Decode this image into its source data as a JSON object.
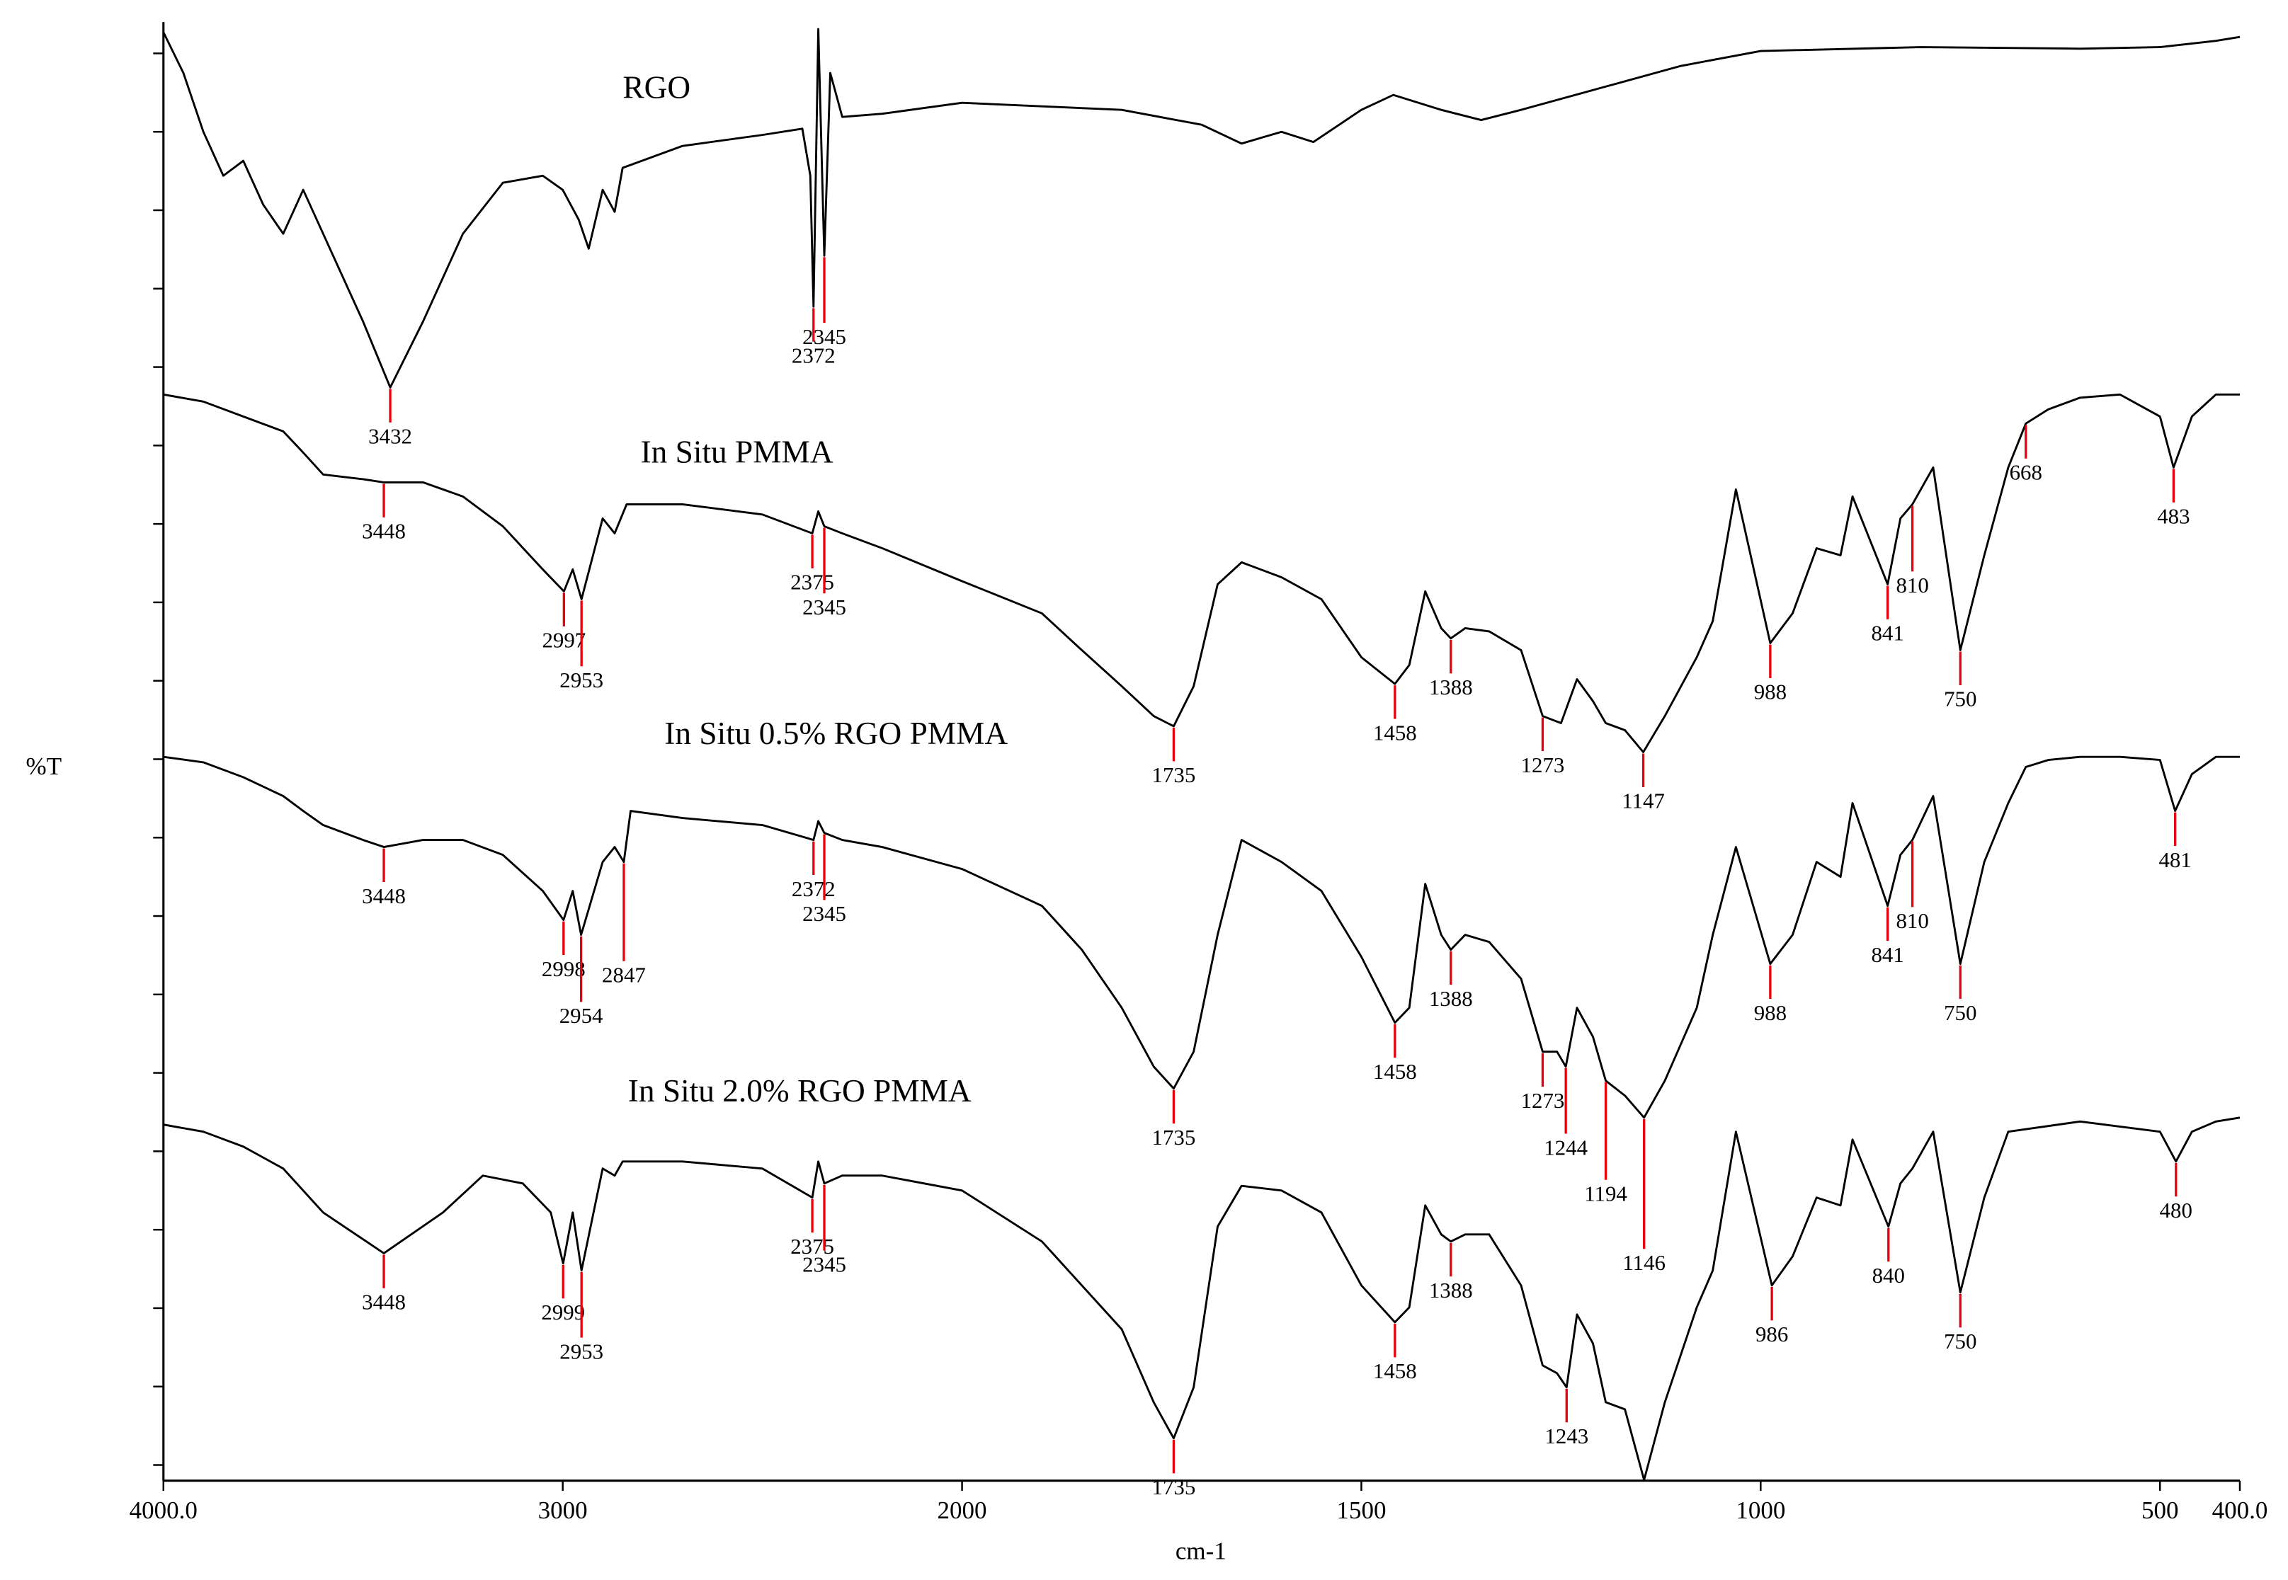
{
  "chart_data": {
    "type": "line",
    "x_label": "cm-1",
    "y_label": "%T",
    "xlim": [
      4000,
      400
    ],
    "x_scale_break": 2000,
    "x_scale_factor_below_break": 2,
    "xticks": [
      {
        "value": 4000,
        "label": "4000.0"
      },
      3000,
      2000,
      1500,
      1000,
      500,
      {
        "value": 400,
        "label": "400.0"
      }
    ],
    "ylim": [
      -0.2,
      18.4
    ],
    "yticks": [
      0,
      1,
      2,
      3,
      4,
      5,
      6,
      7,
      8,
      9,
      10,
      11,
      12,
      13,
      14,
      15,
      16,
      17,
      18
    ],
    "peak_color": "#e8000b",
    "series": [
      {
        "name": "RGO",
        "color": "#000000",
        "x": [
          4000,
          3950,
          3900,
          3850,
          3800,
          3750,
          3700,
          3650,
          3600,
          3550,
          3500,
          3432,
          3350,
          3250,
          3150,
          3050,
          3000,
          2960,
          2935,
          2900,
          2870,
          2850,
          2700,
          2500,
          2400,
          2380,
          2372,
          2365,
          2360,
          2345,
          2330,
          2300,
          2200,
          2000,
          1800,
          1700,
          1650,
          1600,
          1560,
          1500,
          1460,
          1400,
          1350,
          1300,
          1200,
          1100,
          1000,
          800,
          600,
          500,
          430,
          400
        ],
        "values": [
          18.27,
          17.75,
          17.0,
          16.44,
          16.63,
          16.07,
          15.7,
          16.26,
          15.7,
          15.14,
          14.58,
          13.74,
          14.58,
          15.7,
          16.35,
          16.44,
          16.26,
          15.88,
          15.51,
          16.26,
          15.98,
          16.54,
          16.82,
          16.96,
          17.04,
          16.44,
          14.77,
          16.82,
          18.31,
          15.42,
          17.75,
          17.19,
          17.23,
          17.37,
          17.28,
          17.09,
          16.85,
          17.0,
          16.87,
          17.28,
          17.47,
          17.28,
          17.15,
          17.28,
          17.56,
          17.84,
          18.03,
          18.08,
          18.06,
          18.08,
          18.16,
          18.21
        ],
        "peaks": [
          3432,
          2372,
          2345
        ]
      },
      {
        "name": "In Situ PMMA",
        "color": "#000000",
        "x": [
          4000,
          3900,
          3800,
          3700,
          3650,
          3600,
          3500,
          3448,
          3350,
          3250,
          3150,
          3050,
          2997,
          2975,
          2953,
          2900,
          2870,
          2840,
          2700,
          2500,
          2375,
          2360,
          2345,
          2300,
          2200,
          2000,
          1900,
          1850,
          1800,
          1760,
          1735,
          1710,
          1680,
          1650,
          1600,
          1550,
          1500,
          1458,
          1440,
          1420,
          1400,
          1388,
          1370,
          1340,
          1300,
          1273,
          1250,
          1230,
          1210,
          1194,
          1170,
          1147,
          1120,
          1080,
          1060,
          1031,
          988,
          960,
          930,
          900,
          885,
          841,
          825,
          810,
          784,
          750,
          720,
          690,
          668,
          640,
          600,
          550,
          500,
          483,
          460,
          430,
          400
        ],
        "values": [
          13.65,
          13.56,
          13.37,
          13.18,
          12.91,
          12.63,
          12.57,
          12.53,
          12.53,
          12.35,
          11.97,
          11.42,
          11.14,
          11.42,
          11.04,
          12.07,
          11.88,
          12.25,
          12.25,
          12.12,
          11.88,
          12.16,
          11.97,
          11.88,
          11.69,
          11.27,
          10.86,
          10.39,
          9.93,
          9.55,
          9.42,
          9.93,
          11.23,
          11.51,
          11.32,
          11.04,
          10.3,
          9.96,
          10.2,
          11.14,
          10.67,
          10.54,
          10.67,
          10.63,
          10.39,
          9.55,
          9.46,
          10.02,
          9.74,
          9.46,
          9.37,
          9.09,
          9.55,
          10.3,
          10.76,
          12.44,
          10.48,
          10.86,
          11.69,
          11.6,
          12.35,
          11.23,
          12.07,
          12.25,
          12.72,
          10.39,
          11.6,
          12.72,
          13.28,
          13.46,
          13.61,
          13.65,
          13.37,
          12.72,
          13.37,
          13.65,
          13.65
        ],
        "peaks": [
          3448,
          2997,
          2953,
          2375,
          2345,
          1735,
          1458,
          1388,
          1273,
          1147,
          988,
          841,
          810,
          750,
          668,
          483
        ]
      },
      {
        "name": "In Situ 0.5% RGO PMMA",
        "color": "#000000",
        "x": [
          4000,
          3900,
          3800,
          3700,
          3650,
          3600,
          3500,
          3448,
          3350,
          3250,
          3150,
          3050,
          2998,
          2975,
          2954,
          2900,
          2870,
          2847,
          2830,
          2700,
          2500,
          2372,
          2360,
          2345,
          2300,
          2200,
          2000,
          1900,
          1850,
          1800,
          1760,
          1735,
          1710,
          1680,
          1650,
          1600,
          1550,
          1500,
          1458,
          1440,
          1420,
          1400,
          1388,
          1370,
          1340,
          1300,
          1273,
          1255,
          1244,
          1230,
          1210,
          1194,
          1170,
          1146,
          1120,
          1080,
          1060,
          1031,
          988,
          960,
          930,
          900,
          885,
          841,
          825,
          810,
          784,
          750,
          720,
          690,
          668,
          640,
          600,
          550,
          500,
          481,
          460,
          430,
          400
        ],
        "values": [
          9.03,
          8.96,
          8.77,
          8.53,
          8.34,
          8.16,
          7.97,
          7.88,
          7.97,
          7.97,
          7.78,
          7.32,
          6.95,
          7.32,
          6.76,
          7.69,
          7.88,
          7.69,
          8.34,
          8.25,
          8.16,
          7.97,
          8.21,
          8.06,
          7.97,
          7.88,
          7.6,
          7.13,
          6.57,
          5.83,
          5.08,
          4.8,
          5.27,
          6.76,
          7.97,
          7.69,
          7.32,
          6.48,
          5.64,
          5.83,
          7.41,
          6.76,
          6.57,
          6.76,
          6.67,
          6.2,
          5.27,
          5.27,
          5.08,
          5.83,
          5.46,
          4.9,
          4.71,
          4.43,
          4.9,
          5.83,
          6.76,
          7.88,
          6.39,
          6.76,
          7.69,
          7.5,
          8.44,
          7.13,
          7.78,
          7.97,
          8.53,
          6.39,
          7.69,
          8.44,
          8.9,
          8.99,
          9.03,
          9.03,
          8.99,
          8.34,
          8.81,
          9.03,
          9.03
        ],
        "peaks": [
          3448,
          2998,
          2954,
          2847,
          2372,
          2345,
          1735,
          1458,
          1388,
          1273,
          1244,
          1194,
          1146,
          988,
          841,
          810,
          750,
          481
        ]
      },
      {
        "name": "In Situ 2.0% RGO PMMA",
        "color": "#000000",
        "x": [
          4000,
          3900,
          3800,
          3700,
          3600,
          3448,
          3300,
          3200,
          3100,
          3030,
          2999,
          2975,
          2953,
          2900,
          2870,
          2850,
          2700,
          2500,
          2375,
          2360,
          2345,
          2300,
          2200,
          2000,
          1900,
          1800,
          1760,
          1735,
          1710,
          1680,
          1650,
          1600,
          1550,
          1500,
          1458,
          1440,
          1420,
          1400,
          1388,
          1370,
          1340,
          1300,
          1273,
          1255,
          1243,
          1230,
          1210,
          1194,
          1170,
          1146,
          1120,
          1080,
          1060,
          1031,
          986,
          960,
          930,
          900,
          885,
          840,
          825,
          810,
          784,
          750,
          720,
          690,
          600,
          500,
          480,
          460,
          430,
          400
        ],
        "values": [
          4.34,
          4.25,
          4.06,
          3.78,
          3.22,
          2.7,
          3.22,
          3.69,
          3.59,
          3.22,
          2.57,
          3.22,
          2.48,
          3.78,
          3.69,
          3.87,
          3.87,
          3.78,
          3.41,
          3.87,
          3.59,
          3.69,
          3.69,
          3.5,
          2.85,
          1.73,
          0.8,
          0.34,
          0.99,
          3.04,
          3.56,
          3.5,
          3.22,
          2.29,
          1.82,
          2.01,
          3.31,
          2.94,
          2.85,
          2.94,
          2.94,
          2.29,
          1.27,
          1.17,
          0.99,
          1.92,
          1.55,
          0.8,
          0.71,
          -0.19,
          0.8,
          2.01,
          2.48,
          4.25,
          2.29,
          2.66,
          3.41,
          3.31,
          4.15,
          3.04,
          3.59,
          3.78,
          4.25,
          2.2,
          3.41,
          4.25,
          4.38,
          4.25,
          3.87,
          4.25,
          4.38,
          4.43
        ],
        "peaks": [
          3448,
          2999,
          2953,
          2375,
          2345,
          1735,
          1458,
          1388,
          1243,
          986,
          840,
          750,
          480
        ]
      }
    ]
  }
}
